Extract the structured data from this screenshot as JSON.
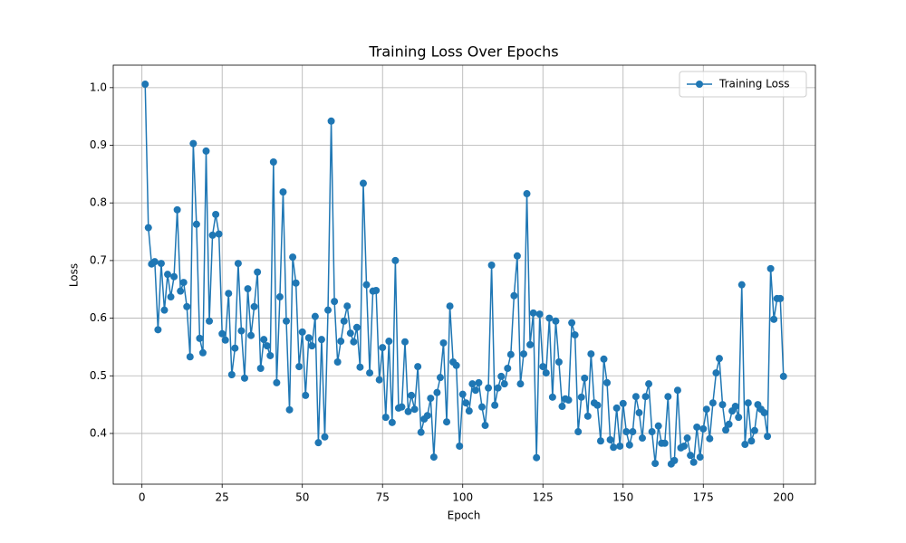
{
  "chart_data": {
    "type": "line",
    "title": "Training Loss Over Epochs",
    "x_label": "Epoch",
    "y_label": "Loss",
    "x": [
      1,
      2,
      3,
      4,
      5,
      6,
      7,
      8,
      9,
      10,
      11,
      12,
      13,
      14,
      15,
      16,
      17,
      18,
      19,
      20,
      21,
      22,
      23,
      24,
      25,
      26,
      27,
      28,
      29,
      30,
      31,
      32,
      33,
      34,
      35,
      36,
      37,
      38,
      39,
      40,
      41,
      42,
      43,
      44,
      45,
      46,
      47,
      48,
      49,
      50,
      51,
      52,
      53,
      54,
      55,
      56,
      57,
      58,
      59,
      60,
      61,
      62,
      63,
      64,
      65,
      66,
      67,
      68,
      69,
      70,
      71,
      72,
      73,
      74,
      75,
      76,
      77,
      78,
      79,
      80,
      81,
      82,
      83,
      84,
      85,
      86,
      87,
      88,
      89,
      90,
      91,
      92,
      93,
      94,
      95,
      96,
      97,
      98,
      99,
      100,
      101,
      102,
      103,
      104,
      105,
      106,
      107,
      108,
      109,
      110,
      111,
      112,
      113,
      114,
      115,
      116,
      117,
      118,
      119,
      120,
      121,
      122,
      123,
      124,
      125,
      126,
      127,
      128,
      129,
      130,
      131,
      132,
      133,
      134,
      135,
      136,
      137,
      138,
      139,
      140,
      141,
      142,
      143,
      144,
      145,
      146,
      147,
      148,
      149,
      150,
      151,
      152,
      153,
      154,
      155,
      156,
      157,
      158,
      159,
      160,
      161,
      162,
      163,
      164,
      165,
      166,
      167,
      168,
      169,
      170,
      171,
      172,
      173,
      174,
      175,
      176,
      177,
      178,
      179,
      180,
      181,
      182,
      183,
      184,
      185,
      186,
      187,
      188,
      189,
      190,
      191,
      192,
      193,
      194,
      195,
      196,
      197,
      198,
      199,
      200
    ],
    "series": [
      {
        "name": "Training Loss",
        "color": "#1f77b4",
        "values": [
          1.006,
          0.757,
          0.694,
          0.698,
          0.58,
          0.695,
          0.614,
          0.676,
          0.637,
          0.672,
          0.788,
          0.647,
          0.662,
          0.62,
          0.533,
          0.903,
          0.763,
          0.565,
          0.54,
          0.89,
          0.595,
          0.744,
          0.78,
          0.746,
          0.573,
          0.562,
          0.643,
          0.502,
          0.548,
          0.695,
          0.578,
          0.496,
          0.651,
          0.57,
          0.62,
          0.68,
          0.513,
          0.563,
          0.552,
          0.535,
          0.871,
          0.488,
          0.637,
          0.819,
          0.595,
          0.441,
          0.706,
          0.661,
          0.516,
          0.576,
          0.466,
          0.566,
          0.552,
          0.603,
          0.384,
          0.563,
          0.394,
          0.614,
          0.942,
          0.629,
          0.524,
          0.56,
          0.595,
          0.621,
          0.574,
          0.559,
          0.584,
          0.515,
          0.834,
          0.658,
          0.505,
          0.647,
          0.648,
          0.493,
          0.549,
          0.428,
          0.56,
          0.419,
          0.7,
          0.444,
          0.446,
          0.559,
          0.438,
          0.466,
          0.442,
          0.516,
          0.402,
          0.425,
          0.431,
          0.461,
          0.359,
          0.471,
          0.497,
          0.557,
          0.42,
          0.621,
          0.524,
          0.518,
          0.378,
          0.468,
          0.453,
          0.439,
          0.486,
          0.475,
          0.488,
          0.446,
          0.414,
          0.479,
          0.692,
          0.449,
          0.479,
          0.499,
          0.486,
          0.513,
          0.537,
          0.639,
          0.708,
          0.486,
          0.538,
          0.816,
          0.554,
          0.609,
          0.358,
          0.607,
          0.516,
          0.505,
          0.6,
          0.463,
          0.595,
          0.524,
          0.447,
          0.46,
          0.458,
          0.592,
          0.571,
          0.403,
          0.463,
          0.496,
          0.43,
          0.538,
          0.453,
          0.449,
          0.387,
          0.529,
          0.488,
          0.389,
          0.376,
          0.444,
          0.378,
          0.452,
          0.403,
          0.38,
          0.403,
          0.464,
          0.436,
          0.392,
          0.464,
          0.486,
          0.403,
          0.348,
          0.413,
          0.383,
          0.383,
          0.464,
          0.347,
          0.353,
          0.475,
          0.375,
          0.378,
          0.392,
          0.362,
          0.35,
          0.411,
          0.359,
          0.408,
          0.442,
          0.391,
          0.453,
          0.505,
          0.53,
          0.45,
          0.406,
          0.416,
          0.439,
          0.447,
          0.428,
          0.658,
          0.381,
          0.453,
          0.387,
          0.405,
          0.45,
          0.442,
          0.436,
          0.395,
          0.686,
          0.598,
          0.634,
          0.634,
          0.499
        ]
      }
    ],
    "xlim": [
      -8.95,
      209.95
    ],
    "ylim": [
      0.312,
      1.039
    ],
    "xticks": [
      0,
      25,
      50,
      75,
      100,
      125,
      150,
      175,
      200
    ],
    "yticks": [
      0.4,
      0.5,
      0.6,
      0.7,
      0.8,
      0.9,
      {
        "value": 1,
        "label": "1.0"
      }
    ],
    "grid": true,
    "legend": "upper right"
  }
}
